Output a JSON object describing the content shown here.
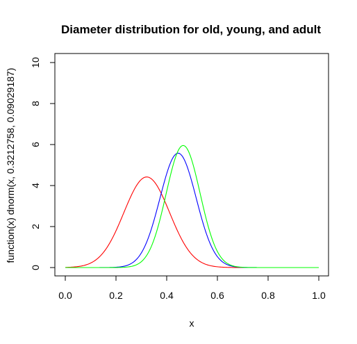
{
  "chart_data": {
    "type": "line",
    "title": "Diameter distribution for old, young, and adult",
    "xlabel": "x",
    "ylabel": "function(x) dnorm(x, 0.3212758, 0.09029187)",
    "xlim": [
      0,
      1
    ],
    "ylim": [
      0,
      10
    ],
    "x_ticks": [
      "0.0",
      "0.2",
      "0.4",
      "0.6",
      "0.8",
      "1.0"
    ],
    "y_ticks": [
      "0",
      "2",
      "4",
      "6",
      "8",
      "10"
    ],
    "grid": false,
    "legend": "none",
    "series": [
      {
        "color": "#ff0000",
        "mean": 0.3212758,
        "sd": 0.09029187
      },
      {
        "color": "#0000ff",
        "mean": 0.445,
        "sd": 0.0715
      },
      {
        "color": "#00ff00",
        "mean": 0.465,
        "sd": 0.067
      }
    ]
  }
}
